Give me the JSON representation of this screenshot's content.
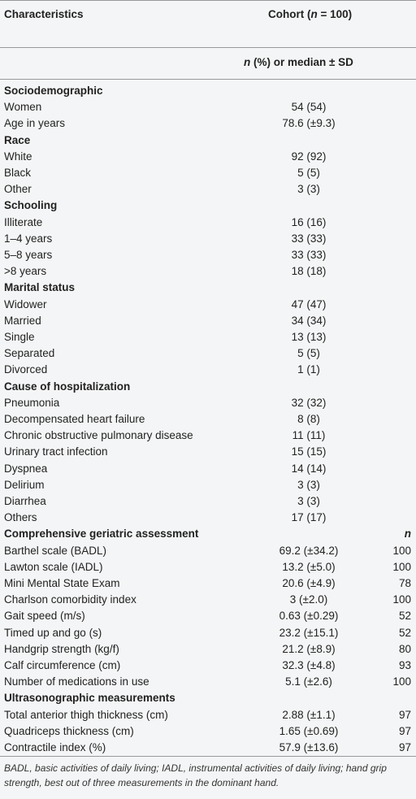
{
  "header": {
    "col1": "Characteristics",
    "col2": [
      "Cohort (",
      "n",
      " = 100)"
    ],
    "subheader": [
      "n",
      " (%) or median ± SD"
    ]
  },
  "sections": [
    {
      "title": "Sociodemographic",
      "rows": [
        [
          "Women",
          "54 (54)"
        ],
        [
          "Age in years",
          "78.6 (±9.3)"
        ]
      ]
    },
    {
      "title": "Race",
      "rows": [
        [
          "White",
          "92 (92)"
        ],
        [
          "Black",
          "5 (5)"
        ],
        [
          "Other",
          "3 (3)"
        ]
      ]
    },
    {
      "title": "Schooling",
      "rows": [
        [
          "Illiterate",
          "16 (16)"
        ],
        [
          "1–4 years",
          "33 (33)"
        ],
        [
          "5–8 years",
          "33 (33)"
        ],
        [
          ">8 years",
          "18 (18)"
        ]
      ]
    },
    {
      "title": "Marital status",
      "rows": [
        [
          "Widower",
          "47 (47)"
        ],
        [
          "Married",
          "34 (34)"
        ],
        [
          "Single",
          "13 (13)"
        ],
        [
          "Separated",
          "5 (5)"
        ],
        [
          "Divorced",
          "1 (1)"
        ]
      ]
    },
    {
      "title": "Cause of hospitalization",
      "rows": [
        [
          "Pneumonia",
          "32 (32)"
        ],
        [
          "Decompensated heart failure",
          "8 (8)"
        ],
        [
          "Chronic obstructive pulmonary disease",
          "11 (11)"
        ],
        [
          "Urinary tract infection",
          "15 (15)"
        ],
        [
          "Dyspnea",
          "14 (14)"
        ],
        [
          "Delirium",
          "3 (3)"
        ],
        [
          "Diarrhea",
          "3 (3)"
        ],
        [
          "Others",
          "17 (17)"
        ]
      ]
    },
    {
      "title": "Comprehensive geriatric assessment",
      "n_header": "n",
      "rows": [
        [
          "Barthel scale (BADL)",
          "69.2 (±34.2)",
          100
        ],
        [
          "Lawton scale (IADL)",
          "13.2 (±5.0)",
          100
        ],
        [
          "Mini Mental State Exam",
          "20.6 (±4.9)",
          78
        ],
        [
          "Charlson comorbidity index",
          "3 (±2.0)",
          100
        ],
        [
          "Gait speed (m/s)",
          "0.63 (±0.29)",
          52
        ],
        [
          "Timed up and go (s)",
          "23.2 (±15.1)",
          52
        ],
        [
          "Handgrip strength (kg/f)",
          "21.2 (±8.9)",
          80
        ],
        [
          "Calf circumference (cm)",
          "32.3 (±4.8)",
          93
        ],
        [
          "Number of medications in use",
          "5.1 (±2.6)",
          100
        ]
      ]
    },
    {
      "title": "Ultrasonographic measurements",
      "rows": [
        [
          "Total anterior thigh thickness (cm)",
          "2.88 (±1.1)",
          97
        ],
        [
          "Quadriceps thickness (cm)",
          "1.65 (±0.69)",
          97
        ],
        [
          "Contractile index (%)",
          "57.9 (±13.6)",
          97
        ]
      ]
    }
  ],
  "footnote": "BADL, basic activities of daily living; IADL, instrumental activities of daily living; hand grip strength, best out of three measurements in the dominant hand."
}
